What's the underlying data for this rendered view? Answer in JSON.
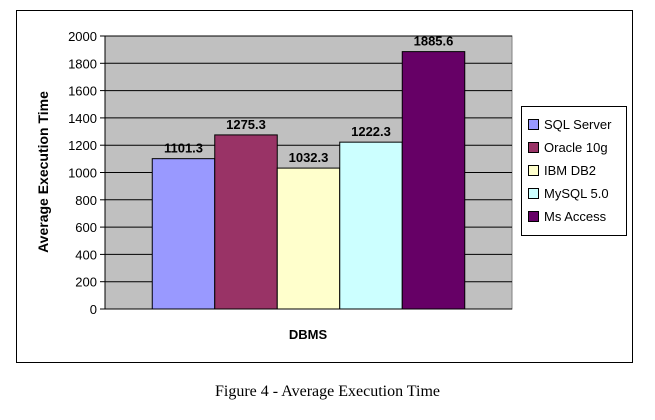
{
  "chart_data": {
    "type": "bar",
    "categories": [
      "SQL Server",
      "Oracle 10g",
      "IBM DB2",
      "MySQL 5.0",
      "Ms Access"
    ],
    "values": [
      1101.3,
      1275.3,
      1032.3,
      1222.3,
      1885.6
    ],
    "value_labels": [
      "1101.3",
      "1275.3",
      "1032.3",
      "1222.3",
      "1885.6"
    ],
    "colors": [
      "#9999ff",
      "#993366",
      "#ffffcc",
      "#ccffff",
      "#660066"
    ],
    "xlabel": "DBMS",
    "ylabel": "Average Execution Time",
    "ylim": [
      0,
      2000
    ],
    "yticks": [
      0,
      200,
      400,
      600,
      800,
      1000,
      1200,
      1400,
      1600,
      1800,
      2000
    ],
    "grid": true,
    "legend_position": "right",
    "plot_background": "#c0c0c0"
  },
  "caption": "Figure 4 - Average Execution Time"
}
